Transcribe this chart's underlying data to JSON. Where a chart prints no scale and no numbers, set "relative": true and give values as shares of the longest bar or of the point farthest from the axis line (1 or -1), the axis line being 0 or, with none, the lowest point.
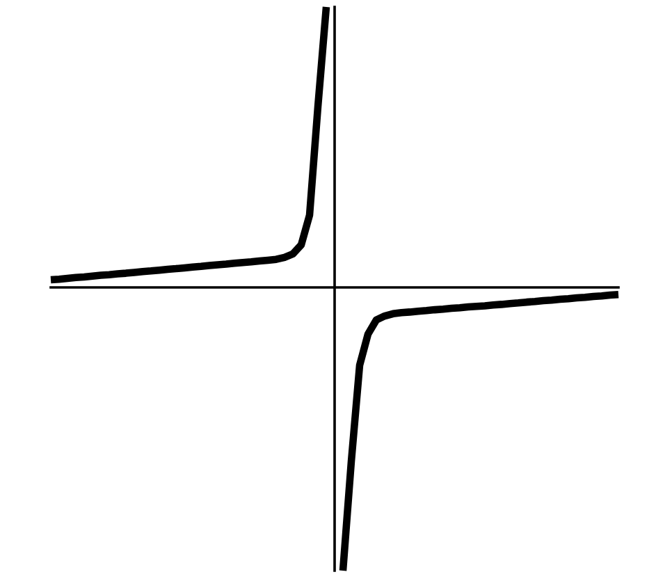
{
  "chart_data": {
    "type": "line",
    "relative": true,
    "line_style": "solid",
    "marker": "none",
    "categories": [
      null,
      null,
      null,
      null,
      null,
      null,
      null,
      null,
      null,
      null,
      null,
      null,
      null,
      null,
      null,
      null,
      null,
      null,
      null,
      null,
      null,
      null,
      null,
      null,
      null,
      null,
      null,
      null,
      null,
      null,
      null,
      null,
      null,
      null,
      null,
      null,
      null,
      null,
      null,
      null,
      null,
      null,
      null,
      null,
      null,
      null,
      null,
      null,
      null,
      null,
      null,
      null,
      null,
      null,
      null,
      null,
      null,
      null,
      null,
      null,
      null,
      null,
      null,
      null,
      null,
      null,
      null,
      null,
      null
    ],
    "series": [
      {
        "color": "#000000",
        "values": [
          0.027,
          0.029,
          0.032,
          0.035,
          0.037,
          0.04,
          0.043,
          0.045,
          0.048,
          0.05,
          0.053,
          0.056,
          0.058,
          0.061,
          0.064,
          0.066,
          0.069,
          0.072,
          0.074,
          0.077,
          0.08,
          0.082,
          0.085,
          0.088,
          0.09,
          0.093,
          0.096,
          0.099,
          0.106,
          0.118,
          0.15,
          0.255,
          0.638,
          0.99,
          null,
          -1.0,
          -0.614,
          -0.275,
          -0.165,
          -0.115,
          -0.101,
          -0.093,
          -0.089,
          -0.087,
          -0.084,
          -0.082,
          -0.079,
          -0.077,
          -0.074,
          -0.072,
          -0.069,
          -0.067,
          -0.065,
          -0.062,
          -0.06,
          -0.057,
          -0.055,
          -0.052,
          -0.05,
          -0.047,
          -0.045,
          -0.042,
          -0.04,
          -0.037,
          -0.035,
          -0.032,
          -0.03,
          -0.027,
          -0.025
        ]
      }
    ]
  }
}
